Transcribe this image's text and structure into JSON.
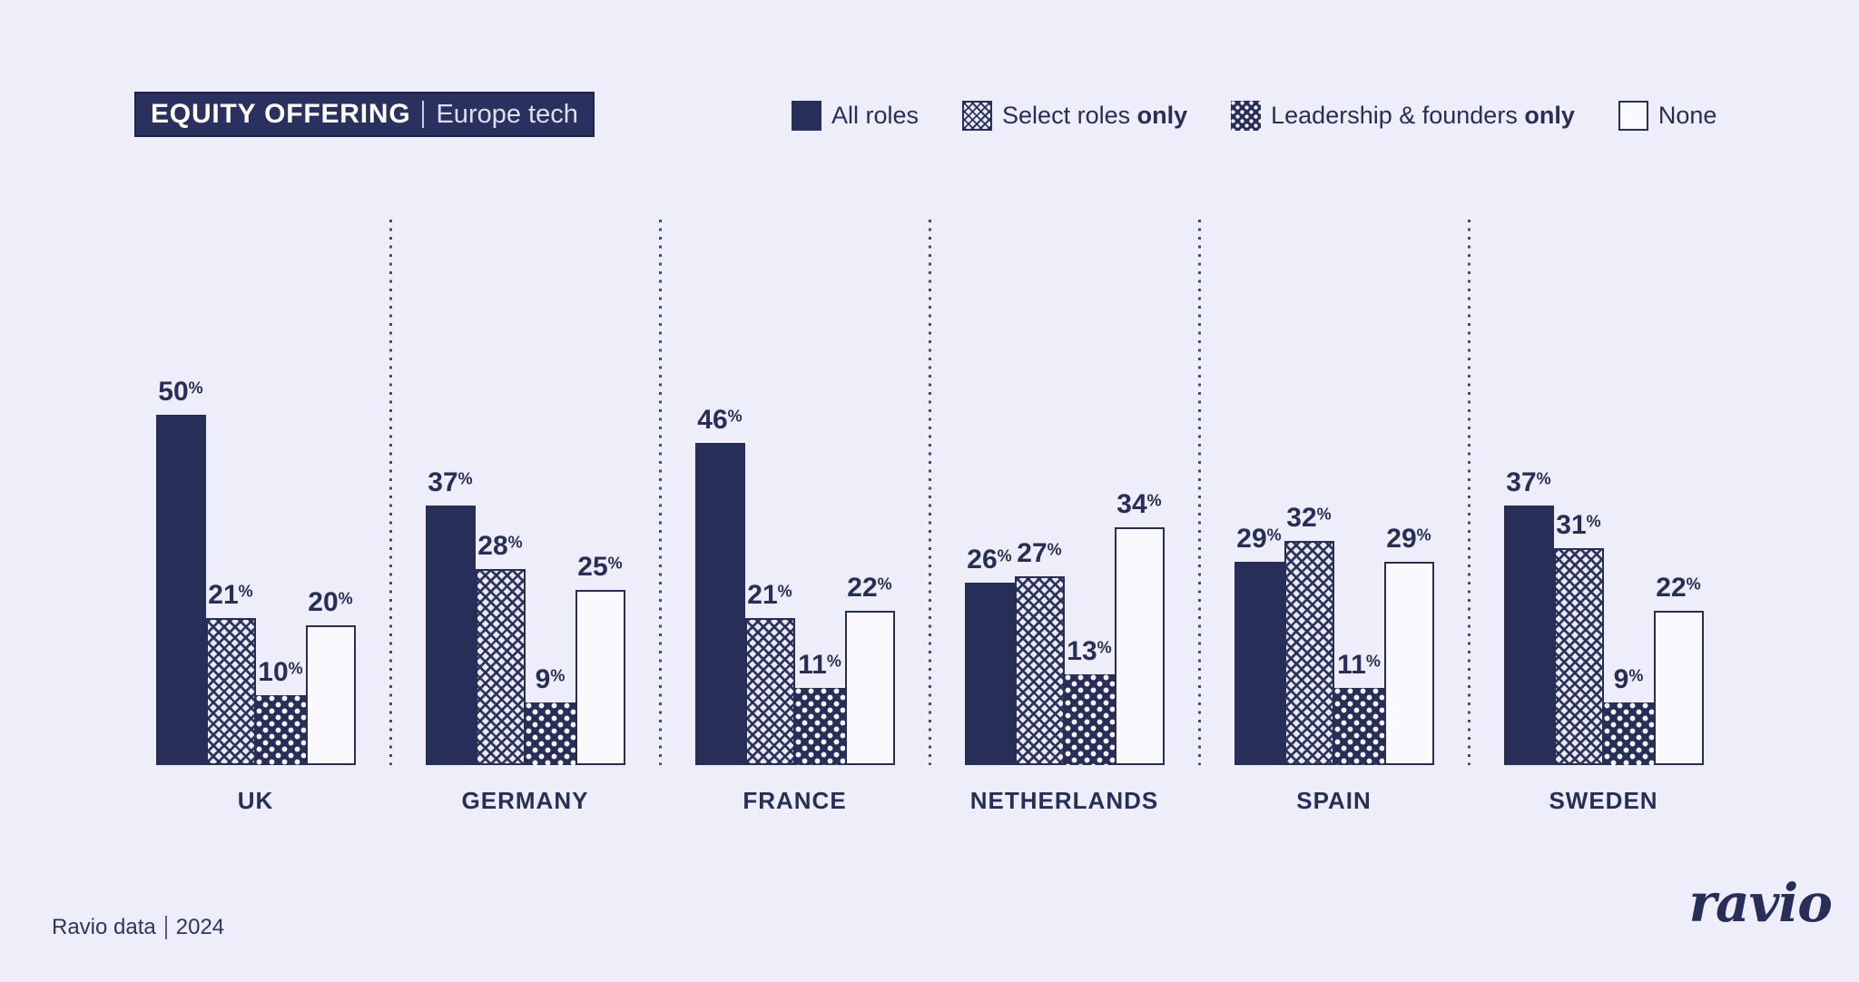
{
  "title": {
    "primary": "EQUITY OFFERING",
    "secondary": "Europe tech"
  },
  "legend": {
    "items": [
      {
        "label": "All roles",
        "label_bold": "",
        "pattern": "solid"
      },
      {
        "label": "Select roles ",
        "label_bold": "only",
        "pattern": "cross"
      },
      {
        "label": "Leadership & founders ",
        "label_bold": "only",
        "pattern": "dots"
      },
      {
        "label": "None",
        "label_bold": "",
        "pattern": "outline"
      }
    ]
  },
  "chart_data": {
    "type": "bar",
    "title": "EQUITY OFFERING | Europe tech",
    "categories": [
      "UK",
      "GERMANY",
      "FRANCE",
      "NETHERLANDS",
      "SPAIN",
      "SWEDEN"
    ],
    "series": [
      {
        "name": "All roles",
        "pattern": "solid",
        "values": [
          50,
          37,
          46,
          26,
          29,
          37
        ]
      },
      {
        "name": "Select roles only",
        "pattern": "cross",
        "values": [
          21,
          28,
          21,
          27,
          32,
          31
        ]
      },
      {
        "name": "Leadership & founders only",
        "pattern": "dots",
        "values": [
          10,
          9,
          11,
          13,
          11,
          9
        ]
      },
      {
        "name": "None",
        "pattern": "outline",
        "values": [
          20,
          25,
          22,
          34,
          29,
          22
        ]
      }
    ],
    "unit": "%",
    "value_suffix": "%",
    "ylim": [
      0,
      50
    ],
    "grid": false,
    "axis_lines": false,
    "legend_position": "top-right",
    "value_labels": "above-bars"
  },
  "footer": {
    "source": "Ravio data",
    "year": "2024",
    "logo_text": "ravio"
  },
  "colors": {
    "background": "#edeef9",
    "navy": "#272e58",
    "cross_pattern_bg": "#e9eaf5",
    "white_bar": "#f9f9fe",
    "title_box_bg": "#2a315e",
    "title_text": "#ffffff",
    "title_secondary_text": "#dde0f1"
  }
}
